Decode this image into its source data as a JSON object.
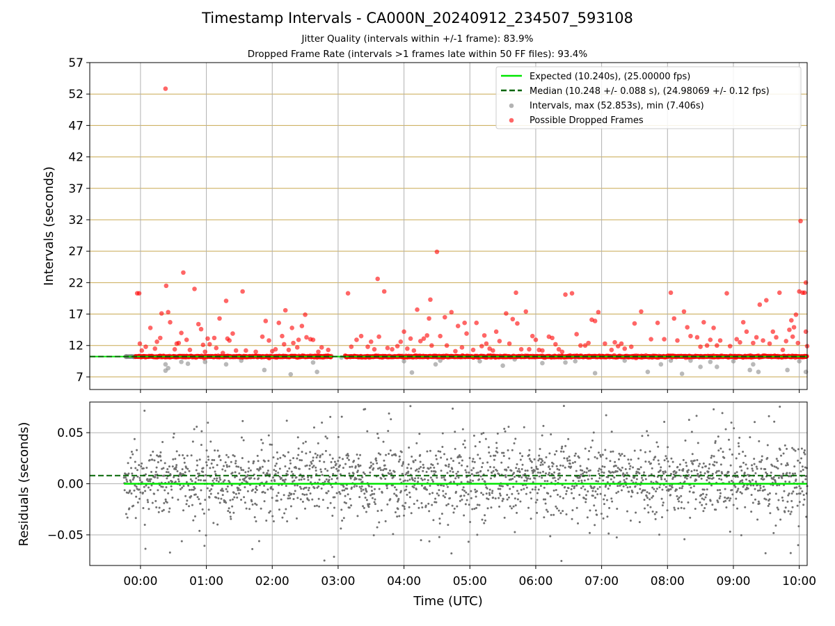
{
  "title": "Timestamp Intervals - CA000N_20240912_234507_593108",
  "subtitle_lines": [
    "Jitter Quality (intervals within +/-1 frame): 83.9%",
    "Dropped Frame Rate (intervals >1 frames late within 50 FF files): 93.4%"
  ],
  "colors": {
    "expected": "#00e600",
    "median": "#006400",
    "intervals": "#808080",
    "dropped": "#ff0000",
    "hgrid_top": "#c8a850",
    "vgrid": "#b0b0b0"
  },
  "chart_data": [
    {
      "type": "scatter",
      "panel": "intervals",
      "ylabel": "Intervals (seconds)",
      "xlabel": "",
      "ylim": [
        5,
        57
      ],
      "yticks": [
        7,
        12,
        17,
        22,
        27,
        32,
        37,
        42,
        47,
        52,
        57
      ],
      "x_range_hours": [
        -0.77,
        10.12
      ],
      "xtick_hours": [
        0,
        1,
        2,
        3,
        4,
        5,
        6,
        7,
        8,
        9,
        10
      ],
      "grid": "horizontal and vertical",
      "legend_position": "upper-right",
      "legend": [
        "Expected (10.240s), (25.00000 fps)",
        "Median (10.248 +/- 0.088 s), (24.98069 +/- 0.12 fps)",
        "Intervals, max (52.853s), min (7.406s)",
        "Possible Dropped Frames"
      ],
      "expected_value": 10.24,
      "median_value": 10.248,
      "series": [
        {
          "name": "Intervals, max (52.853s), min (7.406s)",
          "points": [
            [
              -0.22,
              10.2
            ],
            [
              -0.1,
              10.2
            ],
            [
              0.38,
              8.0
            ],
            [
              0.38,
              9.0
            ],
            [
              0.42,
              8.4
            ],
            [
              0.62,
              9.4
            ],
            [
              0.72,
              9.1
            ],
            [
              0.98,
              9.4
            ],
            [
              1.3,
              9.0
            ],
            [
              1.53,
              9.6
            ],
            [
              1.88,
              8.1
            ],
            [
              2.28,
              7.41
            ],
            [
              2.62,
              9.3
            ],
            [
              2.68,
              7.8
            ],
            [
              3.05,
              10.1
            ],
            [
              4.0,
              9.5
            ],
            [
              4.12,
              7.7
            ],
            [
              4.48,
              9.0
            ],
            [
              4.55,
              9.6
            ],
            [
              5.15,
              9.5
            ],
            [
              5.5,
              8.8
            ],
            [
              5.68,
              9.8
            ],
            [
              6.1,
              9.2
            ],
            [
              6.15,
              10.1
            ],
            [
              6.45,
              9.3
            ],
            [
              6.6,
              9.5
            ],
            [
              6.9,
              7.6
            ],
            [
              7.35,
              9.6
            ],
            [
              7.7,
              7.8
            ],
            [
              7.9,
              9.0
            ],
            [
              8.05,
              9.6
            ],
            [
              8.22,
              7.5
            ],
            [
              8.35,
              9.6
            ],
            [
              8.5,
              8.6
            ],
            [
              8.65,
              9.4
            ],
            [
              8.75,
              8.6
            ],
            [
              9.0,
              9.5
            ],
            [
              9.25,
              8.1
            ],
            [
              9.3,
              9.0
            ],
            [
              9.38,
              7.8
            ],
            [
              9.82,
              8.1
            ],
            [
              10.0,
              9.5
            ],
            [
              10.1,
              7.8
            ],
            [
              9.15,
              10.2
            ]
          ]
        },
        {
          "name": "Possible Dropped Frames",
          "band_value": 10.24,
          "band_x_range": [
            -0.08,
            10.12
          ],
          "points": [
            [
              -0.05,
              20.3
            ],
            [
              -0.02,
              20.3
            ],
            [
              -0.01,
              12.3
            ],
            [
              0.02,
              11.2
            ],
            [
              0.08,
              11.8
            ],
            [
              0.15,
              14.8
            ],
            [
              0.22,
              11.5
            ],
            [
              0.25,
              12.6
            ],
            [
              0.3,
              13.2
            ],
            [
              0.32,
              17.1
            ],
            [
              0.38,
              52.85
            ],
            [
              0.39,
              21.5
            ],
            [
              0.42,
              17.3
            ],
            [
              0.45,
              15.7
            ],
            [
              0.52,
              11.4
            ],
            [
              0.55,
              12.3
            ],
            [
              0.58,
              12.4
            ],
            [
              0.62,
              14.0
            ],
            [
              0.65,
              23.6
            ],
            [
              0.7,
              12.9
            ],
            [
              0.75,
              11.3
            ],
            [
              0.82,
              21.0
            ],
            [
              0.88,
              15.4
            ],
            [
              0.92,
              14.6
            ],
            [
              0.95,
              12.1
            ],
            [
              0.98,
              11.0
            ],
            [
              1.02,
              13.1
            ],
            [
              1.05,
              12.2
            ],
            [
              1.12,
              13.2
            ],
            [
              1.15,
              11.6
            ],
            [
              1.2,
              16.3
            ],
            [
              1.25,
              10.8
            ],
            [
              1.3,
              19.1
            ],
            [
              1.32,
              13.1
            ],
            [
              1.35,
              12.8
            ],
            [
              1.4,
              13.9
            ],
            [
              1.45,
              11.2
            ],
            [
              1.55,
              20.6
            ],
            [
              1.6,
              11.2
            ],
            [
              1.75,
              11.0
            ],
            [
              1.85,
              13.4
            ],
            [
              1.9,
              15.9
            ],
            [
              1.95,
              12.8
            ],
            [
              2.0,
              11.1
            ],
            [
              2.05,
              11.4
            ],
            [
              2.1,
              15.6
            ],
            [
              2.15,
              13.5
            ],
            [
              2.18,
              12.2
            ],
            [
              2.2,
              17.6
            ],
            [
              2.25,
              11.3
            ],
            [
              2.3,
              14.8
            ],
            [
              2.32,
              12.4
            ],
            [
              2.38,
              11.7
            ],
            [
              2.4,
              12.9
            ],
            [
              2.45,
              15.1
            ],
            [
              2.5,
              16.9
            ],
            [
              2.52,
              13.3
            ],
            [
              2.58,
              13.0
            ],
            [
              2.62,
              12.9
            ],
            [
              2.7,
              11.0
            ],
            [
              2.75,
              11.7
            ],
            [
              2.85,
              11.3
            ],
            [
              3.15,
              20.3
            ],
            [
              3.2,
              11.8
            ],
            [
              3.28,
              12.9
            ],
            [
              3.35,
              13.5
            ],
            [
              3.45,
              11.8
            ],
            [
              3.5,
              12.6
            ],
            [
              3.55,
              11.4
            ],
            [
              3.6,
              22.6
            ],
            [
              3.62,
              13.4
            ],
            [
              3.7,
              20.6
            ],
            [
              3.75,
              11.6
            ],
            [
              3.82,
              11.4
            ],
            [
              3.9,
              11.9
            ],
            [
              3.95,
              12.6
            ],
            [
              4.0,
              14.2
            ],
            [
              4.05,
              11.5
            ],
            [
              4.1,
              13.1
            ],
            [
              4.15,
              11.2
            ],
            [
              4.2,
              17.7
            ],
            [
              4.25,
              12.7
            ],
            [
              4.3,
              13.1
            ],
            [
              4.35,
              13.6
            ],
            [
              4.38,
              16.3
            ],
            [
              4.4,
              19.3
            ],
            [
              4.42,
              12.0
            ],
            [
              4.5,
              26.9
            ],
            [
              4.55,
              13.5
            ],
            [
              4.62,
              16.5
            ],
            [
              4.65,
              12.0
            ],
            [
              4.72,
              17.3
            ],
            [
              4.78,
              11.1
            ],
            [
              4.82,
              15.1
            ],
            [
              4.88,
              11.7
            ],
            [
              4.92,
              15.6
            ],
            [
              4.95,
              13.9
            ],
            [
              5.05,
              11.3
            ],
            [
              5.1,
              15.6
            ],
            [
              5.18,
              11.9
            ],
            [
              5.22,
              13.6
            ],
            [
              5.25,
              12.3
            ],
            [
              5.3,
              11.5
            ],
            [
              5.35,
              11.2
            ],
            [
              5.4,
              14.2
            ],
            [
              5.45,
              12.7
            ],
            [
              5.55,
              17.1
            ],
            [
              5.6,
              12.3
            ],
            [
              5.65,
              16.2
            ],
            [
              5.7,
              20.4
            ],
            [
              5.72,
              15.5
            ],
            [
              5.78,
              11.4
            ],
            [
              5.85,
              17.4
            ],
            [
              5.9,
              11.4
            ],
            [
              5.95,
              13.5
            ],
            [
              6.0,
              12.9
            ],
            [
              6.05,
              11.3
            ],
            [
              6.1,
              11.2
            ],
            [
              6.2,
              13.4
            ],
            [
              6.25,
              13.2
            ],
            [
              6.3,
              12.2
            ],
            [
              6.35,
              11.4
            ],
            [
              6.4,
              11.0
            ],
            [
              6.45,
              20.1
            ],
            [
              6.55,
              20.3
            ],
            [
              6.62,
              13.8
            ],
            [
              6.68,
              12.0
            ],
            [
              6.75,
              12.0
            ],
            [
              6.8,
              12.4
            ],
            [
              6.85,
              16.1
            ],
            [
              6.9,
              15.9
            ],
            [
              6.95,
              17.3
            ],
            [
              7.05,
              12.3
            ],
            [
              7.15,
              11.3
            ],
            [
              7.2,
              12.5
            ],
            [
              7.25,
              11.9
            ],
            [
              7.3,
              12.3
            ],
            [
              7.35,
              11.5
            ],
            [
              7.45,
              11.8
            ],
            [
              7.5,
              15.5
            ],
            [
              7.6,
              17.4
            ],
            [
              7.75,
              13.0
            ],
            [
              7.85,
              15.6
            ],
            [
              7.95,
              13.0
            ],
            [
              8.05,
              20.4
            ],
            [
              8.1,
              16.3
            ],
            [
              8.15,
              12.8
            ],
            [
              8.25,
              17.4
            ],
            [
              8.3,
              14.9
            ],
            [
              8.35,
              13.5
            ],
            [
              8.45,
              13.3
            ],
            [
              8.5,
              11.8
            ],
            [
              8.55,
              15.7
            ],
            [
              8.6,
              12.0
            ],
            [
              8.65,
              12.9
            ],
            [
              8.7,
              14.8
            ],
            [
              8.75,
              12.0
            ],
            [
              8.8,
              12.8
            ],
            [
              8.9,
              20.3
            ],
            [
              8.95,
              11.9
            ],
            [
              9.05,
              13.0
            ],
            [
              9.1,
              12.5
            ],
            [
              9.15,
              15.7
            ],
            [
              9.2,
              14.2
            ],
            [
              9.3,
              12.4
            ],
            [
              9.35,
              13.3
            ],
            [
              9.4,
              18.5
            ],
            [
              9.45,
              12.8
            ],
            [
              9.5,
              19.2
            ],
            [
              9.55,
              12.3
            ],
            [
              9.6,
              14.2
            ],
            [
              9.65,
              13.3
            ],
            [
              9.7,
              20.4
            ],
            [
              9.75,
              11.3
            ],
            [
              9.8,
              12.7
            ],
            [
              9.85,
              14.5
            ],
            [
              9.88,
              16.0
            ],
            [
              9.9,
              13.4
            ],
            [
              9.92,
              14.9
            ],
            [
              9.95,
              16.9
            ],
            [
              9.98,
              12.4
            ],
            [
              10.0,
              20.6
            ],
            [
              10.02,
              31.8
            ],
            [
              10.05,
              20.4
            ],
            [
              10.08,
              20.4
            ],
            [
              10.1,
              22.0
            ],
            [
              10.1,
              14.2
            ],
            [
              10.12,
              11.9
            ]
          ]
        }
      ]
    },
    {
      "type": "scatter",
      "panel": "residuals",
      "ylabel": "Residuals (seconds)",
      "xlabel": "Time (UTC)",
      "ylim": [
        -0.08,
        0.08
      ],
      "ytick_labels": [
        "−0.05",
        "0.00",
        "0.05"
      ],
      "ytick_values": [
        -0.05,
        0.0,
        0.05
      ],
      "x_range_hours": [
        -0.77,
        10.12
      ],
      "xtick_labels": [
        "00:00",
        "01:00",
        "02:00",
        "03:00",
        "04:00",
        "05:00",
        "06:00",
        "07:00",
        "08:00",
        "09:00",
        "10:00"
      ],
      "expected_residual": 0.0,
      "median_residual": 0.008,
      "residual_std": 0.018,
      "residual_x_range": [
        -0.25,
        10.12
      ],
      "point_count": 2200
    }
  ]
}
